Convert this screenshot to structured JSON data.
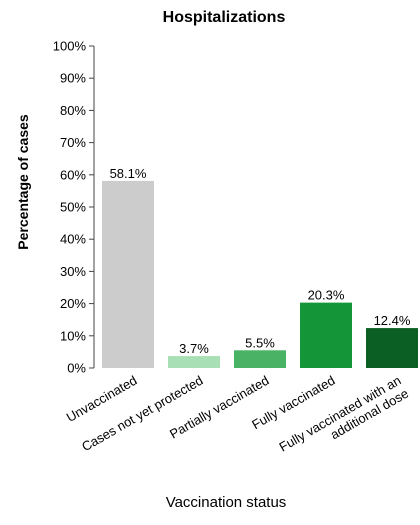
{
  "chart_data": {
    "type": "bar",
    "title": "Hospitalizations",
    "xlabel": "Vaccination status",
    "ylabel": "Percentage of cases",
    "ylim": [
      0,
      100
    ],
    "y_ticks": [
      "0%",
      "10%",
      "20%",
      "30%",
      "40%",
      "50%",
      "60%",
      "70%",
      "80%",
      "90%",
      "100%"
    ],
    "categories": [
      "Unvaccinated",
      "Cases not yet protected",
      "Partially vaccinated",
      "Fully vaccinated",
      "Fully vaccinated with an additional dose"
    ],
    "category_label_lines": [
      [
        "Unvaccinated"
      ],
      [
        "Cases not yet protected"
      ],
      [
        "Partially vaccinated"
      ],
      [
        "Fully vaccinated"
      ],
      [
        "Fully vaccinated with an",
        "additional dose"
      ]
    ],
    "values": [
      58.1,
      3.7,
      5.5,
      20.3,
      12.4
    ],
    "data_labels": [
      "58.1%",
      "3.7%",
      "5.5%",
      "20.3%",
      "12.4%"
    ],
    "colors": [
      "#cccccc",
      "#a8dfb4",
      "#49b265",
      "#149638",
      "#0b5e24"
    ],
    "grid": false,
    "legend": "none"
  }
}
